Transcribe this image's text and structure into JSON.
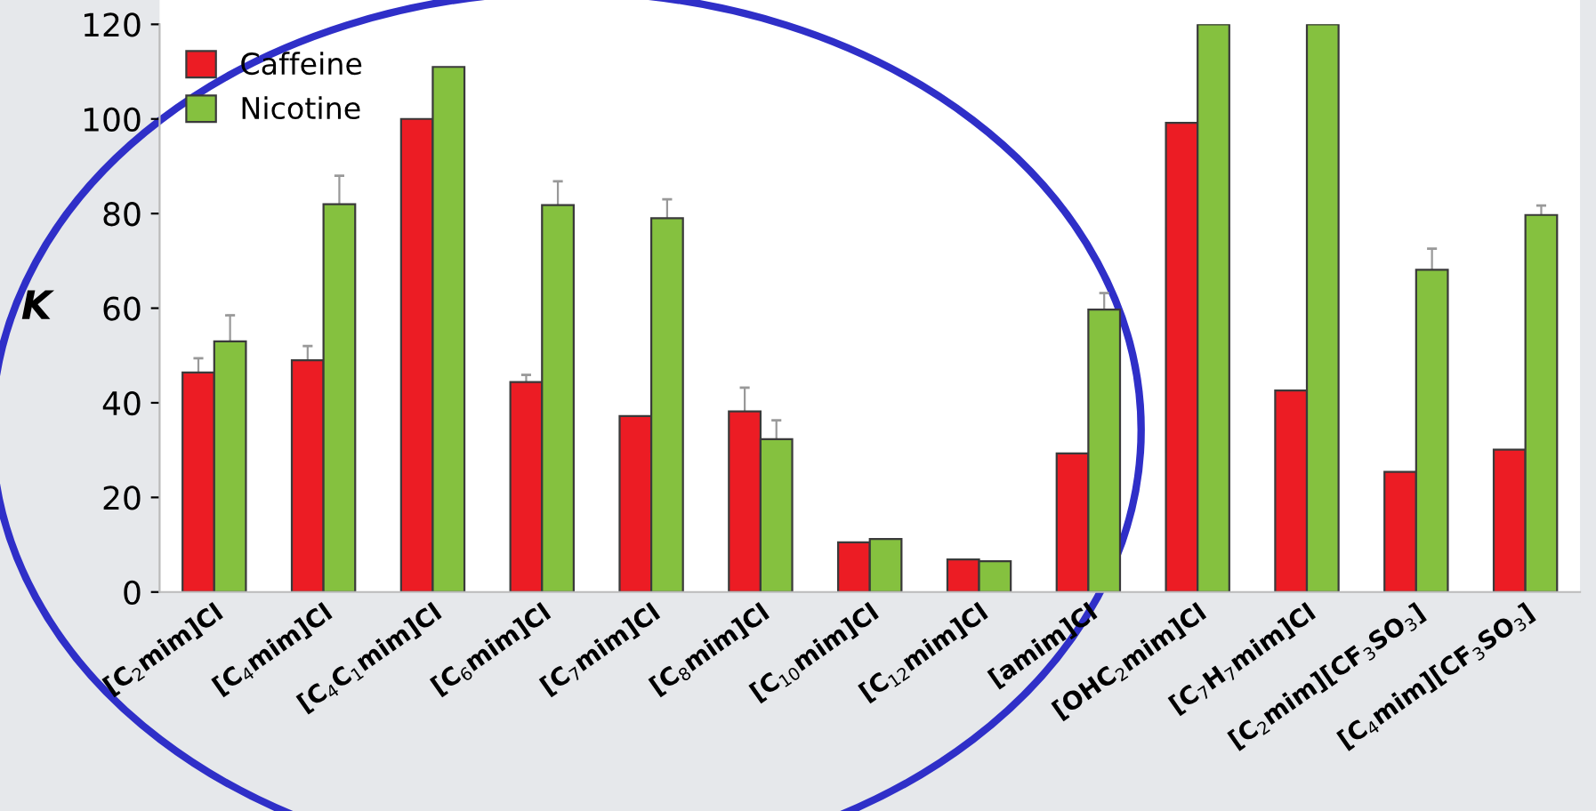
{
  "chart_data": {
    "type": "bar",
    "ylabel": "K",
    "categories": [
      "[C$_{2}$mim]Cl",
      "[C$_{4}$mim]Cl",
      "[C$_{4}$C$_{1}$mim]Cl",
      "[C$_{6}$mim]Cl",
      "[C$_{7}$mim]Cl",
      "[C$_{8}$mim]Cl",
      "[C$_{10}$mim]Cl",
      "[C$_{12}$mim]Cl",
      "[amim]Cl",
      "[OHC$_{2}$mim]Cl",
      "[C$_{7}$H$_{7}$mim]Cl",
      "[C$_{2}$mim][CF$_{3}$SO$_{3}$]",
      "[C$_{4}$mim][CF$_{3}$SO$_{3}$]"
    ],
    "series": [
      {
        "name": "Caffeine",
        "color": "#ec1c24",
        "values": [
          46.4,
          49,
          100,
          44.4,
          37.2,
          38.2,
          10.5,
          6.9,
          29.3,
          99.2,
          42.6,
          25.4,
          30.1
        ],
        "errors": [
          3,
          3,
          null,
          1.5,
          null,
          5,
          null,
          null,
          null,
          null,
          null,
          null,
          null
        ]
      },
      {
        "name": "Nicotine",
        "color": "#85c13f",
        "values": [
          53,
          82,
          111,
          81.8,
          79,
          32.3,
          11.2,
          6.5,
          59.7,
          120,
          120,
          68.1,
          79.7
        ],
        "errors": [
          5.5,
          6,
          null,
          5,
          4,
          4,
          null,
          null,
          3.5,
          null,
          null,
          4.5,
          2
        ]
      }
    ],
    "ylim": [
      0,
      120
    ],
    "yticks": [
      0,
      20,
      40,
      60,
      80,
      100,
      120
    ],
    "legend": "top left",
    "grid": false
  }
}
